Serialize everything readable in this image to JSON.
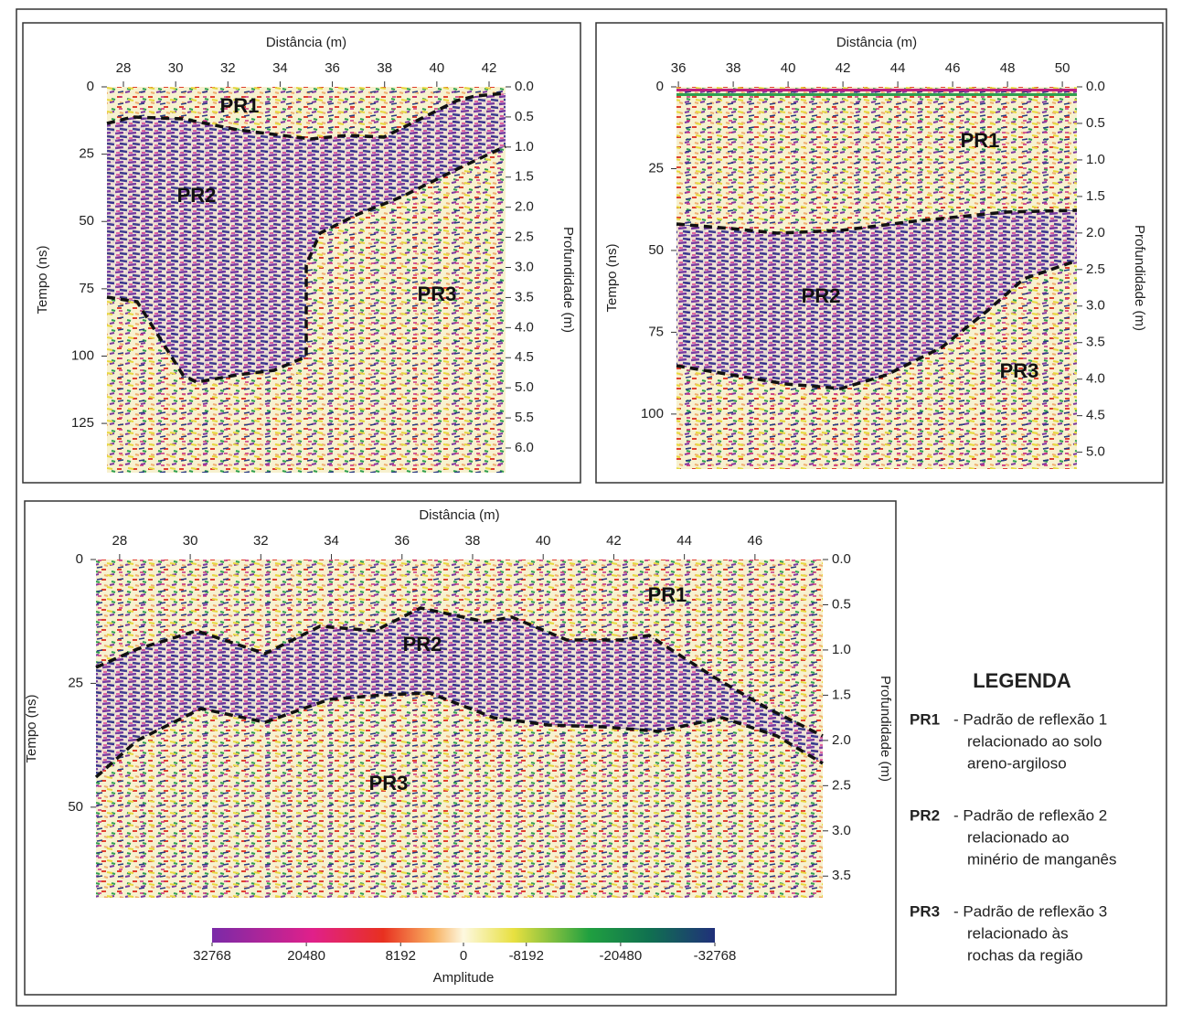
{
  "panels": [
    {
      "x_label": "Distância (m)",
      "y_label": "Tempo (ns)",
      "y2_label": "Profundidade (m)",
      "xlim": [
        27.37,
        42.63
      ],
      "xticks": [
        28,
        30,
        32,
        34,
        36,
        38,
        40,
        42
      ],
      "ylim": [
        0,
        143.3
      ],
      "yticks": [
        0,
        25,
        50,
        75,
        100,
        125
      ],
      "y2lim": [
        0,
        6.41
      ],
      "y2ticks": [
        {
          "value": 0,
          "label": "0.0"
        },
        0.5,
        {
          "value": 1,
          "label": "1.0"
        },
        1.5,
        {
          "value": 2,
          "label": "2.0"
        },
        2.5,
        {
          "value": 3,
          "label": "3.0"
        },
        3.5,
        {
          "value": 4,
          "label": "4.0"
        },
        4.5,
        {
          "value": 5,
          "label": "5.0"
        },
        5.5,
        {
          "value": 6,
          "label": "6.0"
        }
      ],
      "zones": [
        "PR1",
        "PR2",
        "PR3"
      ]
    },
    {
      "x_label": "Distância (m)",
      "y_label": "Tempo (ns)",
      "y2_label": "Profundidade (m)",
      "xlim": [
        35.93,
        50.53
      ],
      "xticks": [
        36,
        38,
        40,
        42,
        44,
        46,
        48,
        50
      ],
      "ylim": [
        0,
        116.8
      ],
      "yticks": [
        0,
        25,
        50,
        75,
        100
      ],
      "y2lim": [
        0,
        5.23
      ],
      "y2ticks": [
        {
          "value": 0,
          "label": "0.0"
        },
        0.5,
        {
          "value": 1,
          "label": "1.0"
        },
        1.5,
        {
          "value": 2,
          "label": "2.0"
        },
        2.5,
        {
          "value": 3,
          "label": "3.0"
        },
        3.5,
        {
          "value": 4,
          "label": "4.0"
        },
        4.5,
        {
          "value": 5,
          "label": "5.0"
        }
      ],
      "zones": [
        "PR1",
        "PR2",
        "PR3"
      ]
    },
    {
      "x_label": "Distância (m)",
      "y_label": "Tempo (ns)",
      "y2_label": "Profundidade (m)",
      "xlim": [
        27.33,
        47.92
      ],
      "xticks": [
        28,
        30,
        32,
        34,
        36,
        38,
        40,
        42,
        44,
        46
      ],
      "ylim": [
        0,
        68.3
      ],
      "yticks": [
        0,
        25,
        50
      ],
      "y2lim": [
        0,
        3.74
      ],
      "y2ticks": [
        {
          "value": 0,
          "label": "0.0"
        },
        0.5,
        {
          "value": 1,
          "label": "1.0"
        },
        1.5,
        {
          "value": 2,
          "label": "2.0"
        },
        2.5,
        {
          "value": 3,
          "label": "3.0"
        },
        3.5
      ],
      "zones": [
        "PR1",
        "PR2",
        "PR3"
      ]
    }
  ],
  "colorbar": {
    "label": "Amplitude",
    "lim": [
      32768,
      -32768
    ],
    "ticks": [
      32768,
      20480,
      8192,
      0,
      -8192,
      -20480,
      -32768
    ]
  },
  "legend": {
    "title": "LEGENDA",
    "items": [
      {
        "code": "PR1",
        "lines": [
          "- Padrão de reflexão 1",
          "relacionado ao solo",
          "areno-argiloso"
        ]
      },
      {
        "code": "PR2",
        "lines": [
          "- Padrão de reflexão 2",
          "relacionado ao",
          "minério de manganês"
        ]
      },
      {
        "code": "PR3",
        "lines": [
          "- Padrão de reflexão 3",
          "relacionado às",
          "rochas da região"
        ]
      }
    ]
  }
}
